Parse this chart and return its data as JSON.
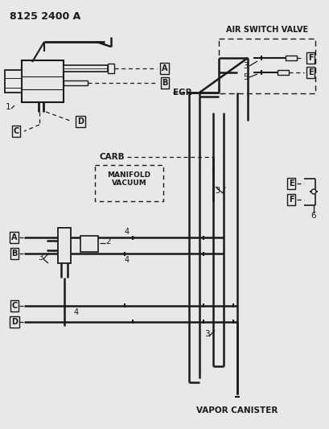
{
  "bg_color": "#e8e8e8",
  "line_color": "#1a1a1a",
  "part_num": "8125 2400 A",
  "labels": {
    "air_switch_valve": "AIR SWITCH VALVE",
    "egr": "EGR",
    "carb": "CARB",
    "manifold_vacuum": "MANIFOLD\nVACUUM",
    "vapor_canister": "VAPOR CANISTER"
  }
}
